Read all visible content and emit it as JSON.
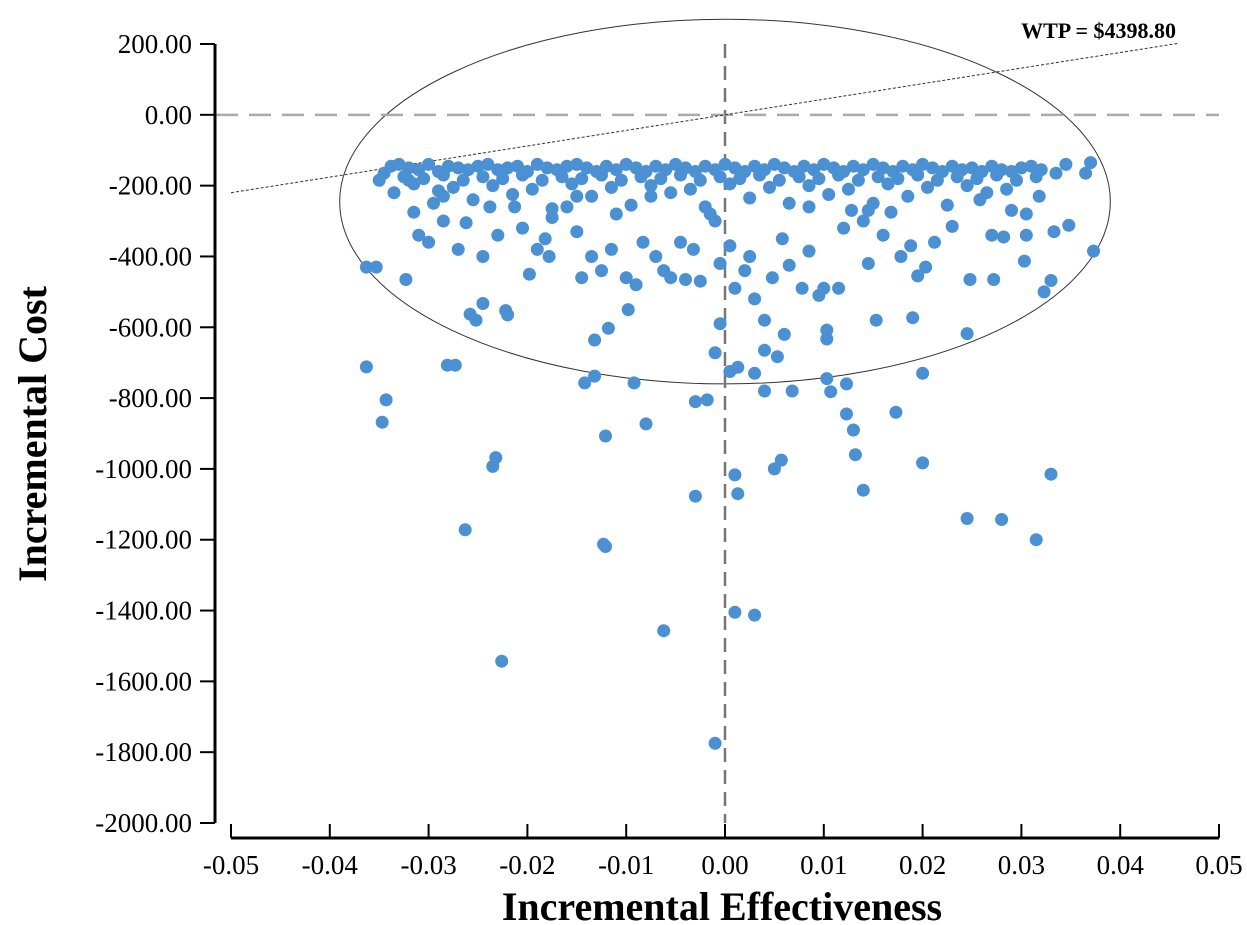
{
  "chart_data": {
    "type": "scatter",
    "title": "",
    "xlabel": "Incremental Effectiveness",
    "ylabel": "Incremental Cost",
    "xlim": [
      -0.05,
      0.05
    ],
    "ylim": [
      -2000,
      200
    ],
    "xticks": [
      -0.05,
      -0.04,
      -0.03,
      -0.02,
      -0.01,
      0.0,
      0.01,
      0.02,
      0.03,
      0.04,
      0.05
    ],
    "xtick_labels": [
      "-0.05",
      "-0.04",
      "-0.03",
      "-0.02",
      "-0.01",
      "0.00",
      "0.01",
      "0.02",
      "0.03",
      "0.04",
      "0.05"
    ],
    "yticks": [
      200,
      0,
      -200,
      -400,
      -600,
      -800,
      -1000,
      -1200,
      -1400,
      -1600,
      -1800,
      -2000
    ],
    "ytick_labels": [
      "200.00",
      "0.00",
      "-200.00",
      "-400.00",
      "-600.00",
      "-800.00",
      "-1000.00",
      "-1200.00",
      "-1400.00",
      "-1600.00",
      "-1800.00",
      "-2000.00"
    ],
    "grid": false,
    "reference_lines": {
      "x_zero_dashed": true,
      "y_zero_dashed": true
    },
    "wtp_line": {
      "label": "WTP = $4398.80",
      "slope": 4398.8
    },
    "confidence_ellipse": {
      "center": [
        0.0,
        -245
      ],
      "semi_axis_x": 0.039,
      "semi_axis_y": 515
    },
    "point_color": "#4a90d2",
    "series": [
      {
        "points": [
          [
            -0.0363,
            -430
          ],
          [
            -0.0353,
            -430
          ],
          [
            -0.0363,
            -712
          ],
          [
            -0.0343,
            -805
          ],
          [
            -0.0347,
            -868
          ],
          [
            -0.0323,
            -465
          ],
          [
            -0.0281,
            -707
          ],
          [
            -0.0273,
            -707
          ],
          [
            -0.0263,
            -1172
          ],
          [
            -0.0258,
            -563
          ],
          [
            -0.0252,
            -580
          ],
          [
            -0.0245,
            -533
          ],
          [
            -0.0232,
            -968
          ],
          [
            -0.0235,
            -993
          ],
          [
            -0.0226,
            -1543
          ],
          [
            -0.0222,
            -553
          ],
          [
            -0.022,
            -565
          ],
          [
            -0.0178,
            -400
          ],
          [
            -0.0142,
            -757
          ],
          [
            -0.0132,
            -738
          ],
          [
            -0.0132,
            -636
          ],
          [
            -0.0123,
            -1213
          ],
          [
            -0.0121,
            -1219
          ],
          [
            -0.0121,
            -907
          ],
          [
            -0.0118,
            -603
          ],
          [
            -0.0092,
            -757
          ],
          [
            -0.008,
            -873
          ],
          [
            -0.0062,
            -1457
          ],
          [
            -0.003,
            -810
          ],
          [
            -0.003,
            -1077
          ],
          [
            -0.0018,
            -805
          ],
          [
            -0.001,
            -1775
          ],
          [
            -0.001,
            -672
          ],
          [
            -0.0005,
            -590
          ],
          [
            0.0005,
            -725
          ],
          [
            0.0013,
            -713
          ],
          [
            0.001,
            -1017
          ],
          [
            0.0013,
            -1070
          ],
          [
            0.001,
            -1405
          ],
          [
            0.003,
            -1413
          ],
          [
            0.003,
            -730
          ],
          [
            0.004,
            -780
          ],
          [
            0.004,
            -665
          ],
          [
            0.005,
            -1000
          ],
          [
            0.0053,
            -683
          ],
          [
            0.0057,
            -975
          ],
          [
            0.006,
            -620
          ],
          [
            0.0068,
            -780
          ],
          [
            0.0103,
            -608
          ],
          [
            0.0103,
            -633
          ],
          [
            0.0103,
            -745
          ],
          [
            0.0107,
            -782
          ],
          [
            0.0123,
            -760
          ],
          [
            0.0123,
            -845
          ],
          [
            0.013,
            -890
          ],
          [
            0.0132,
            -960
          ],
          [
            0.014,
            -1060
          ],
          [
            0.0153,
            -580
          ],
          [
            0.0173,
            -840
          ],
          [
            0.019,
            -573
          ],
          [
            0.02,
            -730
          ],
          [
            0.02,
            -983
          ],
          [
            0.0245,
            -618
          ],
          [
            0.0245,
            -1140
          ],
          [
            0.0248,
            -465
          ],
          [
            0.0272,
            -465
          ],
          [
            0.028,
            -1143
          ],
          [
            0.0303,
            -413
          ],
          [
            0.0315,
            -1200
          ],
          [
            0.0323,
            -500
          ],
          [
            0.033,
            -1015
          ],
          [
            0.033,
            -468
          ],
          [
            0.0333,
            -330
          ],
          [
            0.0348,
            -312
          ],
          [
            0.0373,
            -385
          ],
          [
            0.0335,
            -165
          ],
          [
            0.0365,
            -165
          ],
          [
            0.037,
            -135
          ],
          [
            -0.035,
            -185
          ],
          [
            -0.0335,
            -220
          ],
          [
            -0.032,
            -185
          ],
          [
            -0.0315,
            -275
          ],
          [
            -0.031,
            -340
          ],
          [
            -0.03,
            -360
          ],
          [
            -0.029,
            -215
          ],
          [
            -0.0285,
            -300
          ],
          [
            -0.027,
            -380
          ],
          [
            -0.0262,
            -305
          ],
          [
            -0.0245,
            -400
          ],
          [
            -0.0238,
            -260
          ],
          [
            -0.023,
            -340
          ],
          [
            -0.0213,
            -260
          ],
          [
            -0.0205,
            -320
          ],
          [
            -0.0198,
            -450
          ],
          [
            -0.019,
            -380
          ],
          [
            -0.0182,
            -350
          ],
          [
            -0.0175,
            -290
          ],
          [
            -0.016,
            -260
          ],
          [
            -0.015,
            -330
          ],
          [
            -0.0145,
            -460
          ],
          [
            -0.0135,
            -400
          ],
          [
            -0.0125,
            -440
          ],
          [
            -0.0115,
            -380
          ],
          [
            -0.011,
            -280
          ],
          [
            -0.01,
            -460
          ],
          [
            -0.0098,
            -550
          ],
          [
            -0.009,
            -480
          ],
          [
            -0.0083,
            -360
          ],
          [
            -0.007,
            -400
          ],
          [
            -0.0062,
            -440
          ],
          [
            -0.0055,
            -460
          ],
          [
            -0.0045,
            -360
          ],
          [
            -0.004,
            -465
          ],
          [
            -0.0032,
            -380
          ],
          [
            -0.0025,
            -470
          ],
          [
            -0.002,
            -260
          ],
          [
            -0.001,
            -300
          ],
          [
            -0.0005,
            -420
          ],
          [
            0.0005,
            -370
          ],
          [
            0.001,
            -490
          ],
          [
            0.002,
            -440
          ],
          [
            0.0025,
            -400
          ],
          [
            0.003,
            -520
          ],
          [
            0.004,
            -580
          ],
          [
            0.0048,
            -460
          ],
          [
            0.0058,
            -350
          ],
          [
            0.0065,
            -425
          ],
          [
            0.0078,
            -490
          ],
          [
            0.0085,
            -385
          ],
          [
            0.0095,
            -510
          ],
          [
            0.01,
            -490
          ],
          [
            0.0115,
            -490
          ],
          [
            0.012,
            -320
          ],
          [
            0.0128,
            -270
          ],
          [
            0.014,
            -300
          ],
          [
            0.0145,
            -420
          ],
          [
            0.016,
            -340
          ],
          [
            0.0178,
            -400
          ],
          [
            0.0188,
            -370
          ],
          [
            0.0195,
            -455
          ],
          [
            0.0203,
            -430
          ],
          [
            0.0212,
            -360
          ],
          [
            0.023,
            -315
          ],
          [
            0.0258,
            -240
          ],
          [
            0.027,
            -340
          ],
          [
            0.0282,
            -345
          ],
          [
            0.029,
            -270
          ],
          [
            0.0305,
            -340
          ],
          [
            0.0318,
            -230
          ],
          [
            0.015,
            -250
          ],
          [
            0.0168,
            -275
          ],
          [
            0.0085,
            -260
          ],
          [
            -0.0075,
            -230
          ],
          [
            -0.015,
            -230
          ],
          [
            -0.0255,
            -240
          ],
          [
            -0.0295,
            -250
          ],
          [
            -0.0338,
            -145
          ],
          [
            -0.033,
            -140
          ],
          [
            -0.032,
            -150
          ],
          [
            -0.031,
            -155
          ],
          [
            -0.03,
            -140
          ],
          [
            -0.029,
            -160
          ],
          [
            -0.028,
            -145
          ],
          [
            -0.027,
            -150
          ],
          [
            -0.026,
            -155
          ],
          [
            -0.025,
            -145
          ],
          [
            -0.024,
            -140
          ],
          [
            -0.023,
            -155
          ],
          [
            -0.022,
            -150
          ],
          [
            -0.021,
            -145
          ],
          [
            -0.02,
            -160
          ],
          [
            -0.019,
            -140
          ],
          [
            -0.018,
            -150
          ],
          [
            -0.017,
            -155
          ],
          [
            -0.016,
            -145
          ],
          [
            -0.015,
            -140
          ],
          [
            -0.014,
            -150
          ],
          [
            -0.013,
            -160
          ],
          [
            -0.012,
            -145
          ],
          [
            -0.011,
            -155
          ],
          [
            -0.01,
            -140
          ],
          [
            -0.009,
            -150
          ],
          [
            -0.008,
            -160
          ],
          [
            -0.007,
            -145
          ],
          [
            -0.006,
            -155
          ],
          [
            -0.005,
            -140
          ],
          [
            -0.004,
            -150
          ],
          [
            -0.003,
            -160
          ],
          [
            -0.002,
            -145
          ],
          [
            -0.001,
            -155
          ],
          [
            0.0,
            -140
          ],
          [
            0.001,
            -150
          ],
          [
            0.002,
            -160
          ],
          [
            0.003,
            -145
          ],
          [
            0.004,
            -155
          ],
          [
            0.005,
            -140
          ],
          [
            0.006,
            -150
          ],
          [
            0.007,
            -160
          ],
          [
            0.008,
            -145
          ],
          [
            0.009,
            -155
          ],
          [
            0.01,
            -140
          ],
          [
            0.011,
            -150
          ],
          [
            0.012,
            -160
          ],
          [
            0.013,
            -145
          ],
          [
            0.014,
            -155
          ],
          [
            0.015,
            -140
          ],
          [
            0.016,
            -150
          ],
          [
            0.017,
            -160
          ],
          [
            0.018,
            -145
          ],
          [
            0.019,
            -155
          ],
          [
            0.02,
            -140
          ],
          [
            0.021,
            -150
          ],
          [
            0.022,
            -160
          ],
          [
            0.023,
            -145
          ],
          [
            0.024,
            -155
          ],
          [
            0.025,
            -150
          ],
          [
            0.026,
            -160
          ],
          [
            0.027,
            -145
          ],
          [
            0.028,
            -155
          ],
          [
            0.029,
            -160
          ],
          [
            0.03,
            -150
          ],
          [
            0.031,
            -145
          ],
          [
            0.032,
            -155
          ],
          [
            0.0345,
            -140
          ],
          [
            -0.0345,
            -165
          ],
          [
            -0.0325,
            -175
          ],
          [
            -0.0305,
            -180
          ],
          [
            -0.0285,
            -170
          ],
          [
            -0.0265,
            -185
          ],
          [
            -0.0245,
            -175
          ],
          [
            -0.0225,
            -180
          ],
          [
            -0.0205,
            -170
          ],
          [
            -0.0185,
            -185
          ],
          [
            -0.0165,
            -175
          ],
          [
            -0.0145,
            -180
          ],
          [
            -0.0125,
            -170
          ],
          [
            -0.0105,
            -185
          ],
          [
            -0.0085,
            -175
          ],
          [
            -0.0065,
            -180
          ],
          [
            -0.0045,
            -170
          ],
          [
            -0.0025,
            -185
          ],
          [
            -0.0005,
            -175
          ],
          [
            0.0015,
            -180
          ],
          [
            0.0035,
            -170
          ],
          [
            0.0055,
            -185
          ],
          [
            0.0075,
            -175
          ],
          [
            0.0095,
            -180
          ],
          [
            0.0115,
            -170
          ],
          [
            0.0135,
            -185
          ],
          [
            0.0155,
            -175
          ],
          [
            0.0175,
            -180
          ],
          [
            0.0195,
            -170
          ],
          [
            0.0215,
            -185
          ],
          [
            0.0235,
            -175
          ],
          [
            0.0255,
            -180
          ],
          [
            0.0275,
            -170
          ],
          [
            0.0295,
            -185
          ],
          [
            0.0315,
            -175
          ],
          [
            -0.0315,
            -195
          ],
          [
            -0.0275,
            -205
          ],
          [
            -0.0235,
            -200
          ],
          [
            -0.0195,
            -210
          ],
          [
            -0.0155,
            -195
          ],
          [
            -0.0115,
            -205
          ],
          [
            -0.0075,
            -200
          ],
          [
            -0.0035,
            -210
          ],
          [
            0.0005,
            -195
          ],
          [
            0.0045,
            -205
          ],
          [
            0.0085,
            -200
          ],
          [
            0.0125,
            -210
          ],
          [
            0.0165,
            -195
          ],
          [
            0.0205,
            -205
          ],
          [
            0.0245,
            -200
          ],
          [
            0.0285,
            -210
          ],
          [
            -0.0215,
            -225
          ],
          [
            -0.0135,
            -230
          ],
          [
            -0.0055,
            -220
          ],
          [
            0.0025,
            -235
          ],
          [
            0.0105,
            -225
          ],
          [
            0.0185,
            -230
          ],
          [
            0.0265,
            -220
          ],
          [
            -0.0285,
            -230
          ],
          [
            -0.0095,
            -255
          ],
          [
            0.0065,
            -250
          ],
          [
            0.0225,
            -255
          ],
          [
            -0.0175,
            -265
          ],
          [
            -0.0015,
            -280
          ],
          [
            0.0145,
            -270
          ],
          [
            0.0305,
            -280
          ]
        ]
      }
    ]
  }
}
